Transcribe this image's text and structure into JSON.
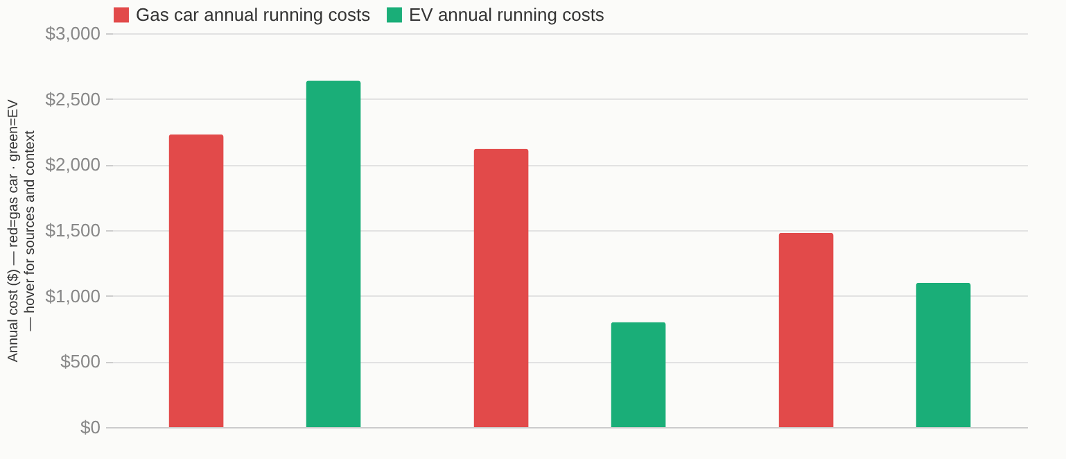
{
  "chart_data": {
    "type": "bar",
    "ylabel": "Annual cost ($) — red=gas car · green=EV — hover for sources and context",
    "categories": [
      null,
      null,
      null
    ],
    "series": [
      {
        "name": "Gas car annual running costs",
        "color": "#e24a4a",
        "values": [
          2230,
          2120,
          1480
        ]
      },
      {
        "name": "EV annual running costs",
        "color": "#1aae78",
        "values": [
          2640,
          800,
          1100
        ]
      }
    ],
    "ylim": [
      0,
      3000
    ],
    "yticks": [
      {
        "value": 0,
        "label": "$0"
      },
      {
        "value": 500,
        "label": "$500"
      },
      {
        "value": 1000,
        "label": "$1,000"
      },
      {
        "value": 1500,
        "label": "$1,500"
      },
      {
        "value": 2000,
        "label": "$2,000"
      },
      {
        "value": 2500,
        "label": "$2,500"
      },
      {
        "value": 3000,
        "label": "$3,000"
      }
    ],
    "grid": "y",
    "legend": "top left"
  }
}
